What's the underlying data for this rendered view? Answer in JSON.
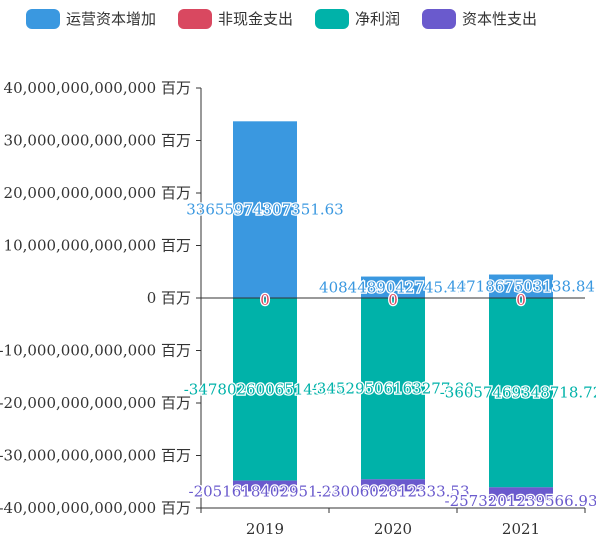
{
  "chart_data": {
    "type": "bar",
    "stacked": true,
    "categories": [
      "2019",
      "2020",
      "2021"
    ],
    "y_unit_suffix": " 百万",
    "ylim": [
      -40000000000000,
      40000000000000
    ],
    "y_ticks": [
      40000000000000,
      30000000000000,
      20000000000000,
      10000000000000,
      0,
      -10000000000000,
      -20000000000000,
      -30000000000000,
      -40000000000000
    ],
    "y_tick_labels": [
      "40,000,000,000,000 百万",
      "30,000,000,000,000 百万",
      "20,000,000,000,000 百万",
      "10,000,000,000,000 百万",
      "0 百万",
      "-10,000,000,000,000 百万",
      "-20,000,000,000,000 百万",
      "-30,000,000,000,000 百万",
      "-40,000,000,000,000 百万"
    ],
    "legend_position": "top",
    "series": [
      {
        "name": "运营资本增加",
        "color": "#3a98e0",
        "values": [
          33655974307351.63,
          4084489042745.12,
          4471867503138.84
        ],
        "labels": [
          "33655974307351.63",
          "4084489042745.12",
          "4471867503138.84"
        ]
      },
      {
        "name": "非现金支出",
        "color": "#d94860",
        "values": [
          0,
          0,
          0
        ],
        "labels": [
          "0",
          "0",
          "0"
        ]
      },
      {
        "name": "净利润",
        "color": "#00b2a9",
        "values": [
          -34780260065149.34,
          -34529506163277.28,
          -36057469348718.72
        ],
        "labels": [
          "-34780260065149.34",
          "-34529506163277.28",
          "-36057469348718.72"
        ]
      },
      {
        "name": "资本性支出",
        "color": "#6a5acd",
        "values": [
          -2051618402951.34,
          -2300602812333.53,
          -2573201239566.93
        ],
        "labels": [
          "-2051618402951.34",
          "-2300602812333.53",
          "-2573201239566.93"
        ]
      }
    ]
  }
}
